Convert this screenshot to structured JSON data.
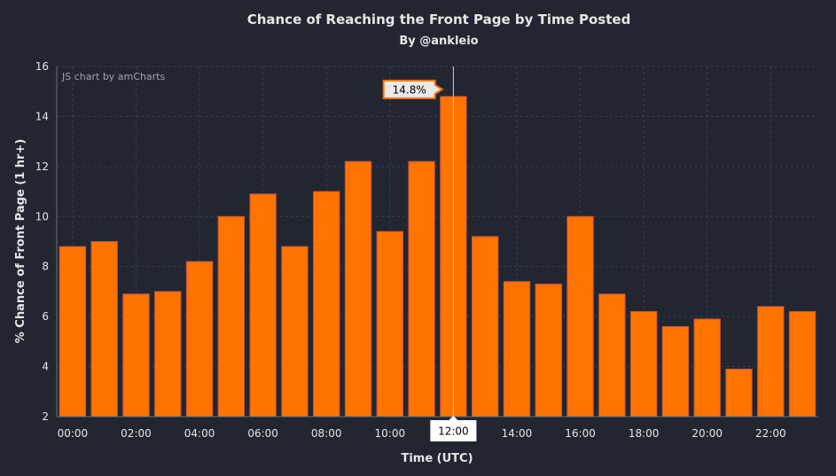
{
  "chart_data": {
    "type": "bar",
    "title": "Chance of Reaching the Front Page by Time Posted",
    "subtitle": "By @ankleio",
    "credit": "JS chart by amCharts",
    "xlabel": "Time (UTC)",
    "ylabel": "% Chance of Front Page (1 hr+)",
    "ylim": [
      2,
      16
    ],
    "yticks": [
      2,
      4,
      6,
      8,
      10,
      12,
      14,
      16
    ],
    "grid": true,
    "categories": [
      "00:00",
      "01:00",
      "02:00",
      "03:00",
      "04:00",
      "05:00",
      "06:00",
      "07:00",
      "08:00",
      "09:00",
      "10:00",
      "11:00",
      "12:00",
      "13:00",
      "14:00",
      "15:00",
      "16:00",
      "17:00",
      "18:00",
      "19:00",
      "20:00",
      "21:00",
      "22:00",
      "23:00"
    ],
    "xtick_labels": [
      "00:00",
      "02:00",
      "04:00",
      "06:00",
      "08:00",
      "10:00",
      "12:00",
      "14:00",
      "16:00",
      "18:00",
      "20:00",
      "22:00"
    ],
    "values": [
      8.8,
      9.0,
      6.9,
      7.0,
      8.2,
      10.0,
      10.9,
      8.8,
      11.0,
      12.2,
      9.4,
      12.2,
      14.8,
      9.2,
      7.4,
      7.3,
      10.0,
      6.9,
      6.2,
      5.6,
      5.9,
      3.9,
      6.4,
      6.2
    ],
    "colors": {
      "bar_fill": "#ff7300",
      "bar_stroke": "#c8553d",
      "background": "#222631",
      "grid": "#3c414d",
      "axis": "#6b7080",
      "text": "#e6e6e6",
      "tooltip_bg": "#e9e9e9",
      "tooltip_border": "#ff7300",
      "cursor_label_bg": "#ffffff"
    },
    "tooltip": {
      "category": "12:00",
      "label": "14.8%"
    }
  }
}
